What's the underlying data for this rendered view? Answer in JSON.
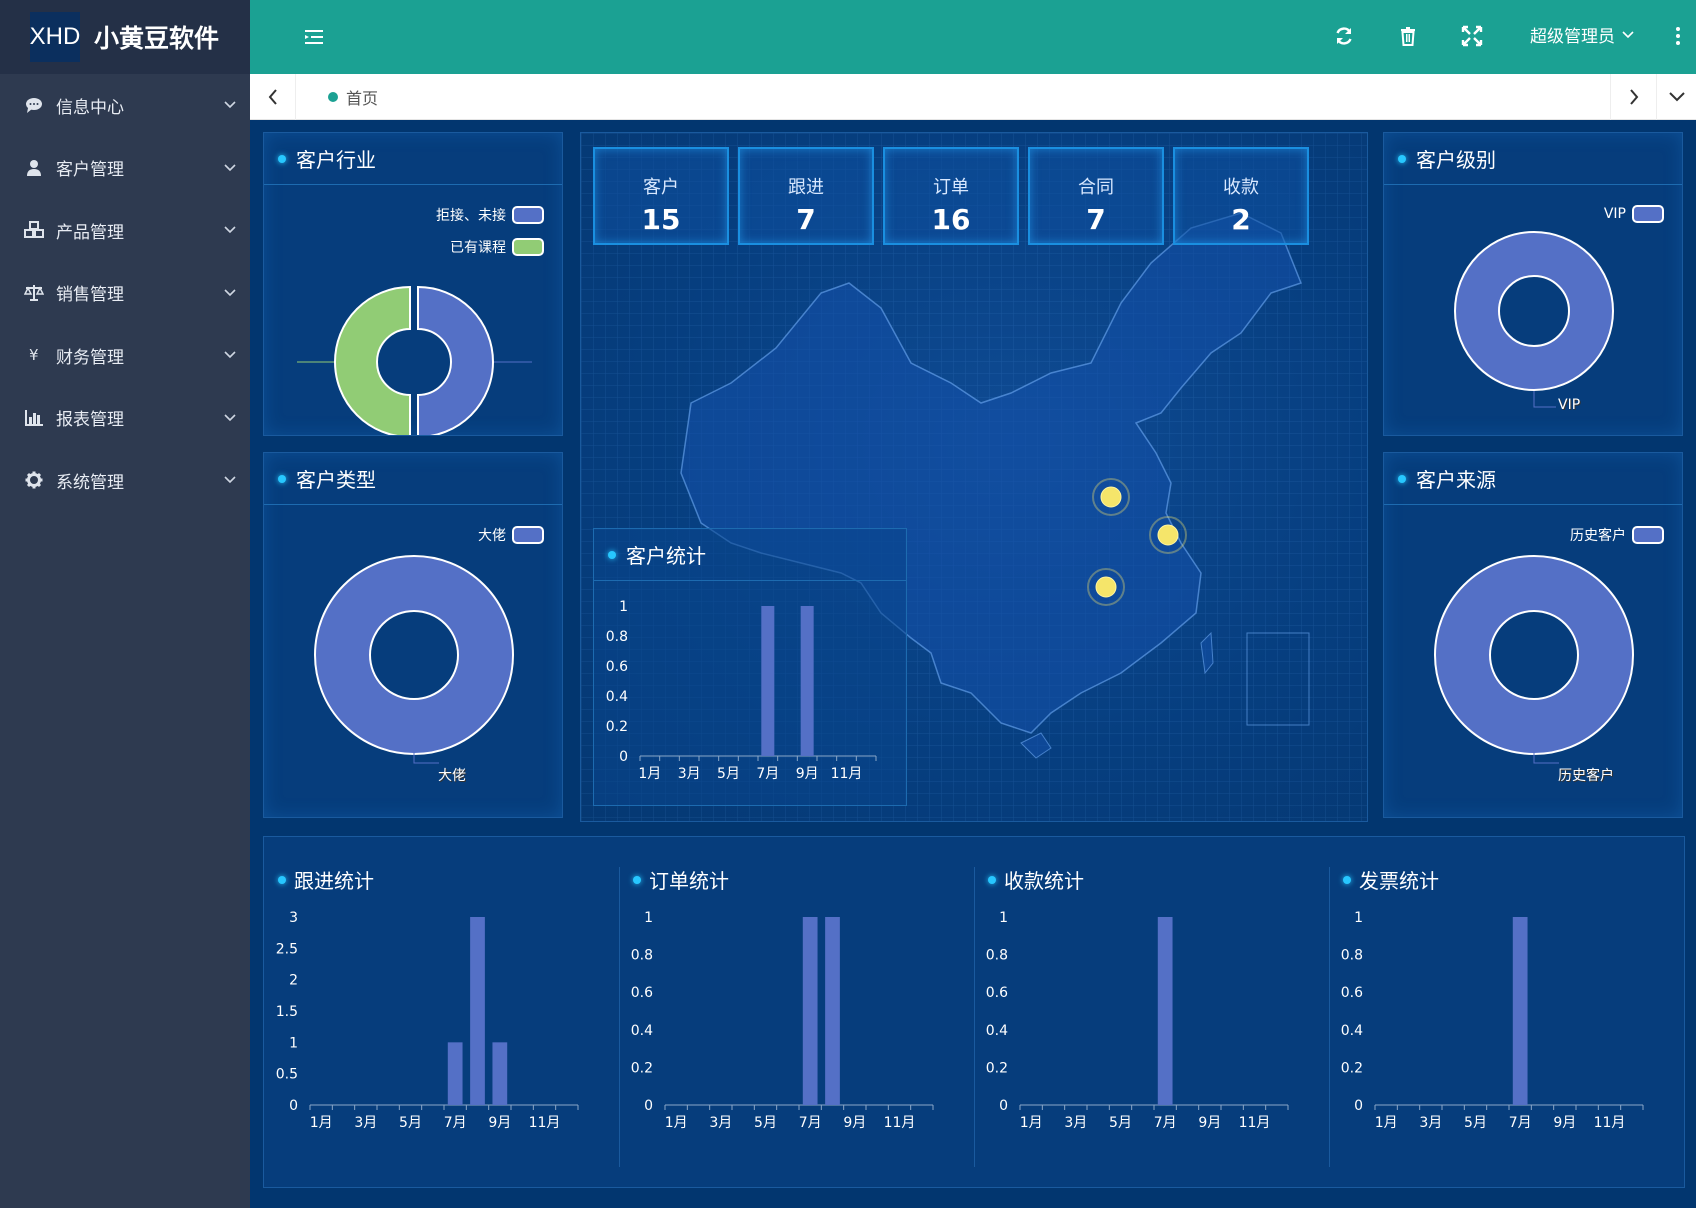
{
  "app": {
    "logo_mark": "XHD",
    "title": "小黄豆软件"
  },
  "sidebar": {
    "items": [
      {
        "label": "信息中心",
        "icon": "chat-icon"
      },
      {
        "label": "客户管理",
        "icon": "user-icon"
      },
      {
        "label": "产品管理",
        "icon": "cubes-icon"
      },
      {
        "label": "销售管理",
        "icon": "balance-scale-icon"
      },
      {
        "label": "财务管理",
        "icon": "yen-icon"
      },
      {
        "label": "报表管理",
        "icon": "bar-chart-icon"
      },
      {
        "label": "系统管理",
        "icon": "gear-icon"
      }
    ]
  },
  "header": {
    "user": "超级管理员"
  },
  "tabs": {
    "home": "首页"
  },
  "colors": {
    "header": "#1ba193",
    "sidebar": "#2e3a50",
    "bar": "#5470c6",
    "green": "#91cc75",
    "bg": "#02366f"
  },
  "industry": {
    "title": "客户行业",
    "legend": [
      {
        "name": "拒接、未接",
        "color": "#5470c6"
      },
      {
        "name": "已有课程",
        "color": "#91cc75"
      }
    ],
    "chart_data": {
      "type": "pie",
      "slices": [
        {
          "name": "拒接、未接",
          "value": 1
        },
        {
          "name": "已有课程",
          "value": 1
        }
      ]
    }
  },
  "ctype": {
    "title": "客户类型",
    "legend": "大佬",
    "slice_label": "大佬",
    "chart_data": {
      "type": "pie",
      "slices": [
        {
          "name": "大佬",
          "value": 1
        }
      ]
    }
  },
  "level": {
    "title": "客户级别",
    "legend": "VIP",
    "slice_label": "VIP",
    "chart_data": {
      "type": "pie",
      "slices": [
        {
          "name": "VIP",
          "value": 1
        }
      ]
    }
  },
  "source": {
    "title": "客户来源",
    "legend": "历史客户",
    "slice_label": "历史客户",
    "chart_data": {
      "type": "pie",
      "slices": [
        {
          "name": "历史客户",
          "value": 1
        }
      ]
    }
  },
  "stats": [
    {
      "label": "客户",
      "value": "15"
    },
    {
      "label": "跟进",
      "value": "7"
    },
    {
      "label": "订单",
      "value": "16"
    },
    {
      "label": "合同",
      "value": "7"
    },
    {
      "label": "收款",
      "value": "2"
    }
  ],
  "customer_stats": {
    "title": "客户统计",
    "chart_data": {
      "type": "bar",
      "categories": [
        "1月",
        "2月",
        "3月",
        "4月",
        "5月",
        "6月",
        "7月",
        "8月",
        "9月",
        "10月",
        "11月",
        "12月"
      ],
      "tick_labels": [
        "1月",
        "3月",
        "5月",
        "7月",
        "9月",
        "11月"
      ],
      "values": [
        0,
        0,
        0,
        0,
        0,
        0,
        1,
        0,
        1,
        0,
        0,
        0
      ],
      "ylim": [
        0,
        1
      ],
      "yticks": [
        "0",
        "0.2",
        "0.4",
        "0.6",
        "0.8",
        "1"
      ]
    }
  },
  "followup_stats": {
    "title": "跟进统计",
    "chart_data": {
      "type": "bar",
      "categories": [
        "1月",
        "2月",
        "3月",
        "4月",
        "5月",
        "6月",
        "7月",
        "8月",
        "9月",
        "10月",
        "11月",
        "12月"
      ],
      "tick_labels": [
        "1月",
        "3月",
        "5月",
        "7月",
        "9月",
        "11月"
      ],
      "values": [
        0,
        0,
        0,
        0,
        0,
        0,
        1,
        3,
        1,
        0,
        0,
        0
      ],
      "ylim": [
        0,
        3
      ],
      "yticks": [
        "0",
        "0.5",
        "1",
        "1.5",
        "2",
        "2.5",
        "3"
      ]
    }
  },
  "order_stats": {
    "title": "订单统计",
    "chart_data": {
      "type": "bar",
      "categories": [
        "1月",
        "2月",
        "3月",
        "4月",
        "5月",
        "6月",
        "7月",
        "8月",
        "9月",
        "10月",
        "11月",
        "12月"
      ],
      "tick_labels": [
        "1月",
        "3月",
        "5月",
        "7月",
        "9月",
        "11月"
      ],
      "values": [
        0,
        0,
        0,
        0,
        0,
        0,
        1,
        1,
        0,
        0,
        0,
        0
      ],
      "ylim": [
        0,
        1
      ],
      "yticks": [
        "0",
        "0.2",
        "0.4",
        "0.6",
        "0.8",
        "1"
      ]
    }
  },
  "payment_stats": {
    "title": "收款统计",
    "chart_data": {
      "type": "bar",
      "categories": [
        "1月",
        "2月",
        "3月",
        "4月",
        "5月",
        "6月",
        "7月",
        "8月",
        "9月",
        "10月",
        "11月",
        "12月"
      ],
      "tick_labels": [
        "1月",
        "3月",
        "5月",
        "7月",
        "9月",
        "11月"
      ],
      "values": [
        0,
        0,
        0,
        0,
        0,
        0,
        1,
        0,
        0,
        0,
        0,
        0
      ],
      "ylim": [
        0,
        1
      ],
      "yticks": [
        "0",
        "0.2",
        "0.4",
        "0.6",
        "0.8",
        "1"
      ]
    }
  },
  "invoice_stats": {
    "title": "发票统计",
    "chart_data": {
      "type": "bar",
      "categories": [
        "1月",
        "2月",
        "3月",
        "4月",
        "5月",
        "6月",
        "7月",
        "8月",
        "9月",
        "10月",
        "11月",
        "12月"
      ],
      "tick_labels": [
        "1月",
        "3月",
        "5月",
        "7月",
        "9月",
        "11月"
      ],
      "values": [
        0,
        0,
        0,
        0,
        0,
        0,
        1,
        0,
        0,
        0,
        0,
        0
      ],
      "ylim": [
        0,
        1
      ],
      "yticks": [
        "0",
        "0.2",
        "0.4",
        "0.6",
        "0.8",
        "1"
      ]
    }
  }
}
